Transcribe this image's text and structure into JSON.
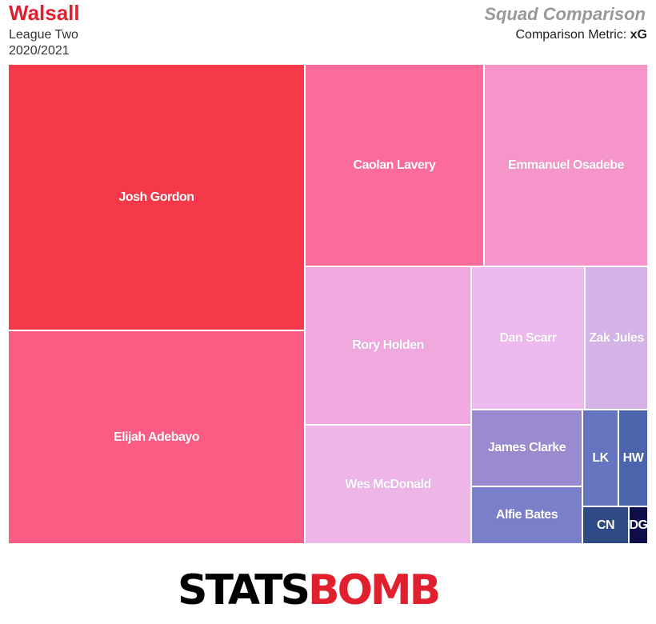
{
  "header": {
    "team": "Walsall",
    "league": "League Two",
    "season": "2020/2021",
    "title": "Squad Comparison",
    "metric_label": "Comparison Metric:",
    "metric_value": "xG"
  },
  "logo": {
    "part1": "STATS",
    "part2": "BOMB"
  },
  "chart_data": {
    "type": "treemap",
    "title": "Squad Comparison",
    "metric": "xG",
    "tiles": [
      {
        "label": "Josh Gordon",
        "color": "#f5394b"
      },
      {
        "label": "Elijah Adebayo",
        "color": "#fc5c84"
      },
      {
        "label": "Caolan Lavery",
        "color": "#fd6b9c"
      },
      {
        "label": "Emmanuel Osadebe",
        "color": "#f595c9"
      },
      {
        "label": "Rory Holden",
        "color": "#f0a8df"
      },
      {
        "label": "Wes McDonald",
        "color": "#eeb5e9"
      },
      {
        "label": "Dan Scarr",
        "color": "#eeb9ee"
      },
      {
        "label": "Zak Jules",
        "color": "#d4b4e6"
      },
      {
        "label": "James Clarke",
        "color": "#9a8bd0"
      },
      {
        "label": "Alfie Bates",
        "color": "#7b7fca"
      },
      {
        "label": "LK",
        "color": "#6575bf"
      },
      {
        "label": "HW",
        "color": "#4c64ab"
      },
      {
        "label": "CN",
        "color": "#2f4b85"
      },
      {
        "label": "DG",
        "color": "#0e0e4a"
      }
    ]
  }
}
